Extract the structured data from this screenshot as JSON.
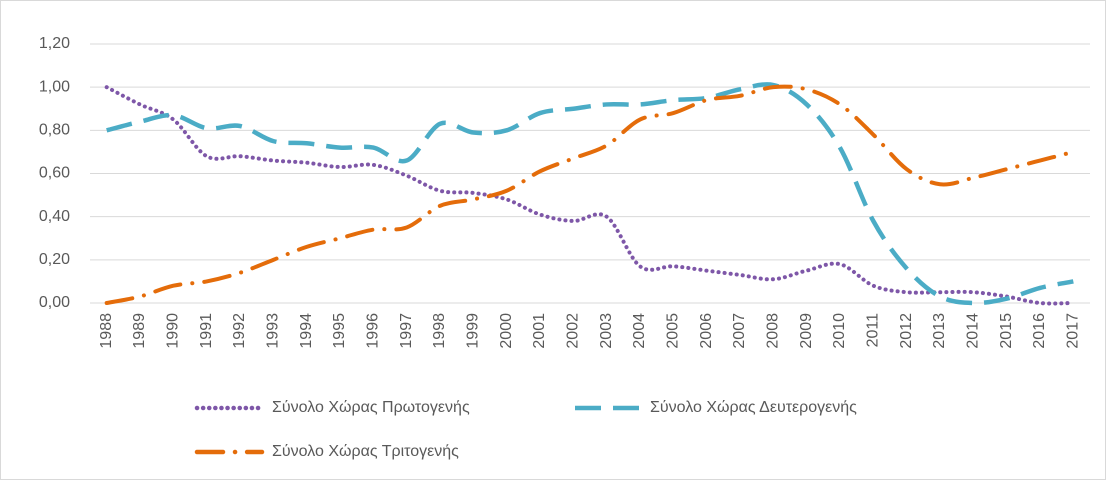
{
  "chart_data": {
    "type": "line",
    "categories": [
      "1988",
      "1989",
      "1990",
      "1991",
      "1992",
      "1993",
      "1994",
      "1995",
      "1996",
      "1997",
      "1998",
      "1999",
      "2000",
      "2001",
      "2002",
      "2003",
      "2004",
      "2005",
      "2006",
      "2007",
      "2008",
      "2009",
      "2010",
      "2011",
      "2012",
      "2013",
      "2014",
      "2015",
      "2016",
      "2017"
    ],
    "series": [
      {
        "name": "Σύνολο Χώρας Πρωτογενής",
        "color": "#7e57a8",
        "line_style": "dotted",
        "values": [
          1.0,
          0.92,
          0.85,
          0.68,
          0.68,
          0.66,
          0.65,
          0.63,
          0.64,
          0.59,
          0.52,
          0.51,
          0.48,
          0.41,
          0.38,
          0.4,
          0.17,
          0.17,
          0.15,
          0.13,
          0.11,
          0.15,
          0.18,
          0.08,
          0.05,
          0.05,
          0.05,
          0.03,
          0.0,
          0.0
        ]
      },
      {
        "name": "Σύνολο Χώρας Δευτερογενής",
        "color": "#4bacc6",
        "line_style": "dashed",
        "values": [
          0.8,
          0.84,
          0.87,
          0.81,
          0.82,
          0.75,
          0.74,
          0.72,
          0.72,
          0.66,
          0.83,
          0.79,
          0.8,
          0.88,
          0.9,
          0.92,
          0.92,
          0.94,
          0.95,
          0.99,
          1.01,
          0.92,
          0.72,
          0.38,
          0.16,
          0.03,
          0.0,
          0.02,
          0.07,
          0.1
        ]
      },
      {
        "name": "Σύνολο Χώρας Τριτογενής",
        "color": "#e46c0a",
        "line_style": "dash-dot",
        "values": [
          0.0,
          0.03,
          0.08,
          0.1,
          0.14,
          0.2,
          0.26,
          0.3,
          0.34,
          0.35,
          0.45,
          0.48,
          0.52,
          0.61,
          0.67,
          0.73,
          0.85,
          0.88,
          0.94,
          0.96,
          1.0,
          0.99,
          0.92,
          0.78,
          0.62,
          0.55,
          0.58,
          0.62,
          0.66,
          0.7
        ]
      }
    ],
    "ylim": [
      0,
      1.2
    ],
    "yticks": [
      {
        "value": 0,
        "label": "0,00"
      },
      {
        "value": 0.2,
        "label": "0,20"
      },
      {
        "value": 0.4,
        "label": "0,40"
      },
      {
        "value": 0.6,
        "label": "0,60"
      },
      {
        "value": 0.8,
        "label": "0,80"
      },
      {
        "value": 1.0,
        "label": "1,00"
      },
      {
        "value": 1.2,
        "label": "1,20"
      }
    ],
    "grid": true,
    "legend": "bottom"
  }
}
